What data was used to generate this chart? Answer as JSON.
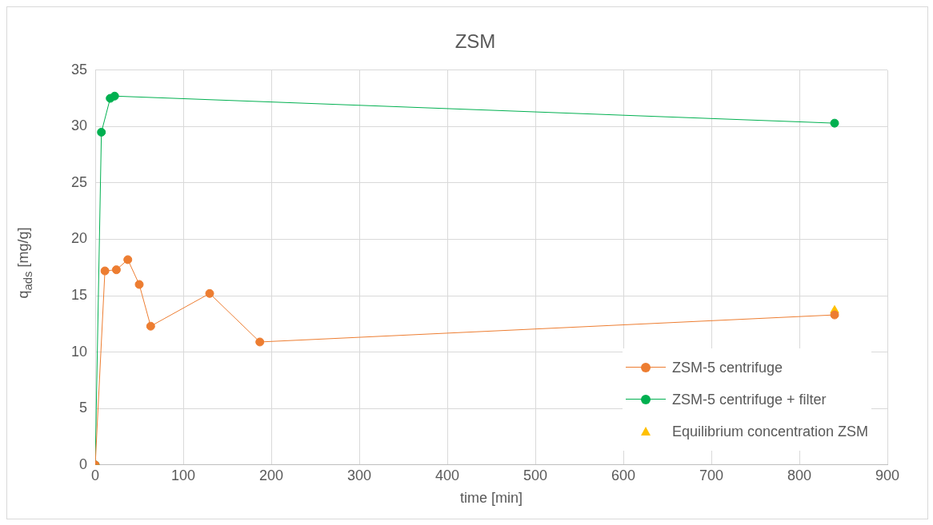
{
  "chart_data": {
    "type": "line",
    "title": "ZSM",
    "xlabel": "time [min]",
    "ylabel": "q$_{ads}$ [mg/g]",
    "xlim": [
      0,
      900
    ],
    "xticks": [
      0,
      100,
      200,
      300,
      400,
      500,
      600,
      700,
      800,
      900
    ],
    "ylim": [
      0,
      35
    ],
    "yticks": [
      0,
      5,
      10,
      15,
      20,
      25,
      30,
      35
    ],
    "grid": true,
    "legend": "bottom right",
    "marker": "circle",
    "line_style": "solid",
    "series": [
      {
        "name": "ZSM-5 centrifuge",
        "color": "#ed7d31",
        "x": [
          0,
          11,
          24,
          37,
          50,
          63,
          130,
          187,
          840
        ],
        "values": [
          0,
          17.2,
          17.3,
          18.2,
          16.0,
          12.3,
          15.2,
          10.9,
          13.3
        ]
      },
      {
        "name": "ZSM-5 centrifuge + filter",
        "color": "#00b050",
        "x": [
          0,
          7,
          17,
          22,
          840
        ],
        "values": [
          0,
          29.5,
          32.5,
          32.7,
          30.3
        ]
      },
      {
        "name": "Equilibrium concentration ZSM",
        "type": "scatter",
        "marker": "triangle",
        "color": "#ffc000",
        "x": [
          840
        ],
        "values": [
          13.7
        ]
      }
    ]
  }
}
